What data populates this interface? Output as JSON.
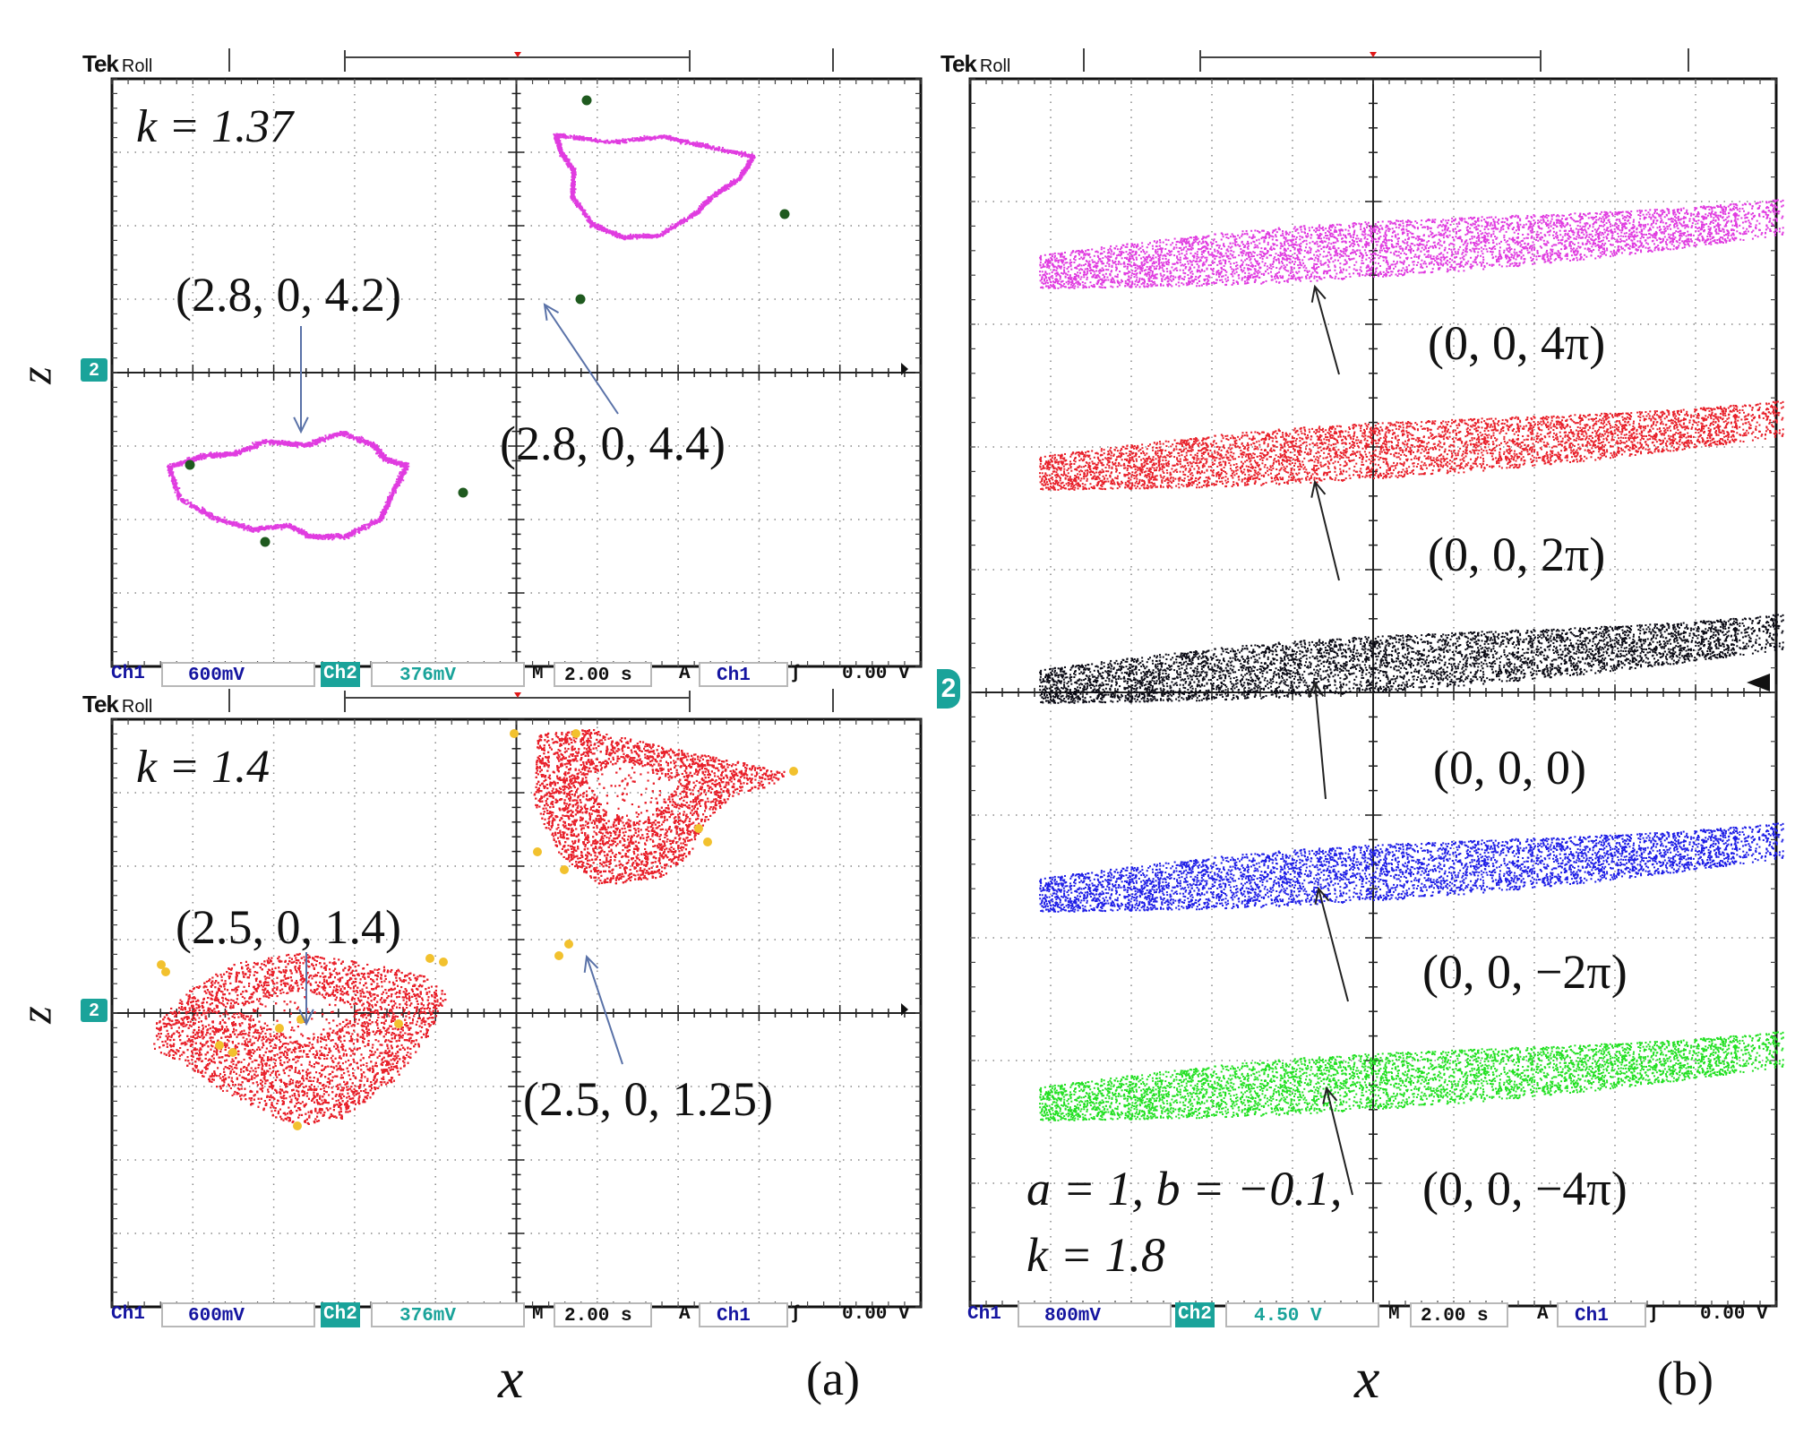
{
  "scope_ui": {
    "brand": "Tek",
    "mode": "Roll",
    "channel_marker": "2"
  },
  "panels": {
    "top_left": {
      "param": "k = 1.37",
      "ch1_label": "Ch1",
      "ch1_scale": "600mV",
      "ch2_label": "Ch2",
      "ch2_scale": "376mV",
      "time_label": "M",
      "time_scale": "2.00 s",
      "trig_label": "A",
      "trig_ch": "Ch1",
      "trig_symbol": "ʃ",
      "trig_level": "0.00 V",
      "ann1": "(2.8, 0, 4.2)",
      "ann2": "(2.8, 0, 4.4)",
      "axis_z": "z",
      "trace_color": "#e03ce0",
      "point_color": "#1f5a1f"
    },
    "bottom_left": {
      "param": "k = 1.4",
      "ch1_label": "Ch1",
      "ch1_scale": "600mV",
      "ch2_label": "Ch2",
      "ch2_scale": "376mV",
      "time_label": "M",
      "time_scale": "2.00 s",
      "trig_label": "A",
      "trig_ch": "Ch1",
      "trig_symbol": "ʃ",
      "trig_level": "0.00 V",
      "ann1": "(2.5, 0, 1.4)",
      "ann2": "(2.5, 0, 1.25)",
      "axis_z": "z",
      "trace_color": "#e8202a",
      "point_color": "#f2c12e"
    },
    "right": {
      "ch1_label": "Ch1",
      "ch1_scale": "800mV",
      "ch2_label": "Ch2",
      "ch2_scale": "4.50 V",
      "time_label": "M",
      "time_scale": "2.00 s",
      "trig_label": "A",
      "trig_ch": "Ch1",
      "trig_symbol": "ʃ",
      "trig_level": "0.00 V",
      "param_line1": "a = 1, b = −0.1,",
      "param_line2": "k = 1.8",
      "labels": [
        "(0, 0, 4π)",
        "(0, 0, 2π)",
        "(0, 0, 0)",
        "(0, 0, −2π)",
        "(0, 0, −4π)"
      ]
    }
  },
  "x_label": "x",
  "panel_tags": [
    "(a)",
    "(b)"
  ],
  "chart_data": {
    "type": "scatter",
    "title": "",
    "xlabel": "x",
    "ylabel": "z",
    "grid": true,
    "series": [
      {
        "name": "(0, 0, 4π)",
        "color": "#e03ce0"
      },
      {
        "name": "(0, 0, 2π)",
        "color": "#e8202a"
      },
      {
        "name": "(0, 0, 0)",
        "color": "#0a0a14"
      },
      {
        "name": "(0, 0, −2π)",
        "color": "#1e1ee6"
      },
      {
        "name": "(0, 0, −4π)",
        "color": "#22e022"
      }
    ]
  }
}
